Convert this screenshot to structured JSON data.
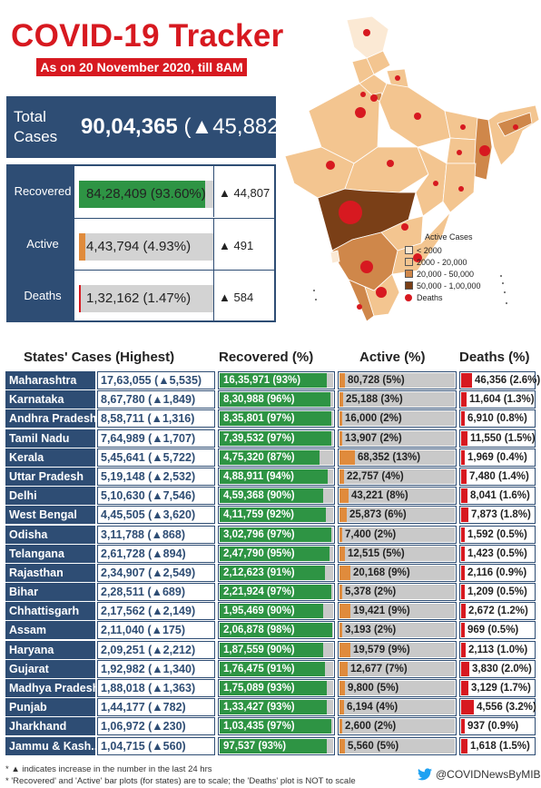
{
  "header": {
    "title": "COVID-19 Tracker",
    "subtitle": "As on 20 November 2020, till 8AM"
  },
  "total": {
    "label": "Total Cases",
    "value": "90,04,365",
    "delta": "(▲45,882)"
  },
  "summary": [
    {
      "label": "Recovered",
      "value": "84,28,409 (93.60%)",
      "pct": 93.6,
      "color": "#2e9444",
      "delta": "▲ 44,807"
    },
    {
      "label": "Active",
      "value": "4,43,794 (4.93%)",
      "pct": 4.93,
      "color": "#e08b3c",
      "delta": "▲ 491"
    },
    {
      "label": "Deaths",
      "value": "1,32,162 (1.47%)",
      "pct": 1.47,
      "color": "#d71920",
      "delta": "▲ 584"
    }
  ],
  "legend": {
    "title": "Active Cases",
    "items": [
      {
        "label": "< 2000",
        "color": "#fbe9d4"
      },
      {
        "label": "2000 - 20,000",
        "color": "#f3c590"
      },
      {
        "label": "20,000 - 50,000",
        "color": "#cf874a"
      },
      {
        "label": "50,000 - 1,00,000",
        "color": "#7a3f17"
      }
    ],
    "deaths_label": "Deaths"
  },
  "table": {
    "headers": {
      "states": "States' Cases (Highest)",
      "recovered": "Recovered (%)",
      "active": "Active (%)",
      "deaths": "Deaths (%)"
    },
    "rows": [
      {
        "state": "Maharashtra",
        "total": "17,63,055 (▲5,535)",
        "rec": "16,35,971 (93%)",
        "rec_pct": 93,
        "act": "80,728 (5%)",
        "act_pct": 5,
        "dth": "46,356 (2.6%)",
        "dth_pct": 2.6
      },
      {
        "state": "Karnataka",
        "total": "8,67,780 (▲1,849)",
        "rec": "8,30,988 (96%)",
        "rec_pct": 96,
        "act": "25,188 (3%)",
        "act_pct": 3,
        "dth": "11,604 (1.3%)",
        "dth_pct": 1.3
      },
      {
        "state": "Andhra Pradesh",
        "total": "8,58,711 (▲1,316)",
        "rec": "8,35,801 (97%)",
        "rec_pct": 97,
        "act": "16,000 (2%)",
        "act_pct": 2,
        "dth": "6,910 (0.8%)",
        "dth_pct": 0.8
      },
      {
        "state": "Tamil Nadu",
        "total": "7,64,989 (▲1,707)",
        "rec": "7,39,532 (97%)",
        "rec_pct": 97,
        "act": "13,907 (2%)",
        "act_pct": 2,
        "dth": "11,550 (1.5%)",
        "dth_pct": 1.5
      },
      {
        "state": "Kerala",
        "total": "5,45,641 (▲5,722)",
        "rec": "4,75,320 (87%)",
        "rec_pct": 87,
        "act": "68,352 (13%)",
        "act_pct": 13,
        "dth": "1,969 (0.4%)",
        "dth_pct": 0.4
      },
      {
        "state": "Uttar Pradesh",
        "total": "5,19,148 (▲2,532)",
        "rec": "4,88,911 (94%)",
        "rec_pct": 94,
        "act": "22,757 (4%)",
        "act_pct": 4,
        "dth": "7,480 (1.4%)",
        "dth_pct": 1.4
      },
      {
        "state": "Delhi",
        "total": "5,10,630 (▲7,546)",
        "rec": "4,59,368 (90%)",
        "rec_pct": 90,
        "act": "43,221 (8%)",
        "act_pct": 8,
        "dth": "8,041 (1.6%)",
        "dth_pct": 1.6
      },
      {
        "state": "West Bengal",
        "total": "4,45,505 (▲3,620)",
        "rec": "4,11,759 (92%)",
        "rec_pct": 92,
        "act": "25,873 (6%)",
        "act_pct": 6,
        "dth": "7,873 (1.8%)",
        "dth_pct": 1.8
      },
      {
        "state": "Odisha",
        "total": "3,11,788 (▲868)",
        "rec": "3,02,796 (97%)",
        "rec_pct": 97,
        "act": "7,400 (2%)",
        "act_pct": 2,
        "dth": "1,592 (0.5%)",
        "dth_pct": 0.5
      },
      {
        "state": "Telangana",
        "total": "2,61,728 (▲894)",
        "rec": "2,47,790 (95%)",
        "rec_pct": 95,
        "act": "12,515 (5%)",
        "act_pct": 5,
        "dth": "1,423 (0.5%)",
        "dth_pct": 0.5
      },
      {
        "state": "Rajasthan",
        "total": "2,34,907 (▲2,549)",
        "rec": "2,12,623 (91%)",
        "rec_pct": 91,
        "act": "20,168 (9%)",
        "act_pct": 9,
        "dth": "2,116 (0.9%)",
        "dth_pct": 0.9
      },
      {
        "state": "Bihar",
        "total": "2,28,511 (▲689)",
        "rec": "2,21,924 (97%)",
        "rec_pct": 97,
        "act": "5,378 (2%)",
        "act_pct": 2,
        "dth": "1,209 (0.5%)",
        "dth_pct": 0.5
      },
      {
        "state": "Chhattisgarh",
        "total": "2,17,562 (▲2,149)",
        "rec": "1,95,469 (90%)",
        "rec_pct": 90,
        "act": "19,421 (9%)",
        "act_pct": 9,
        "dth": "2,672 (1.2%)",
        "dth_pct": 1.2
      },
      {
        "state": "Assam",
        "total": "2,11,040 (▲175)",
        "rec": "2,06,878 (98%)",
        "rec_pct": 98,
        "act": "3,193 (2%)",
        "act_pct": 2,
        "dth": "969 (0.5%)",
        "dth_pct": 0.5
      },
      {
        "state": "Haryana",
        "total": "2,09,251 (▲2,212)",
        "rec": "1,87,559 (90%)",
        "rec_pct": 90,
        "act": "19,579 (9%)",
        "act_pct": 9,
        "dth": "2,113 (1.0%)",
        "dth_pct": 1.0
      },
      {
        "state": "Gujarat",
        "total": "1,92,982 (▲1,340)",
        "rec": "1,76,475 (91%)",
        "rec_pct": 91,
        "act": "12,677 (7%)",
        "act_pct": 7,
        "dth": "3,830 (2.0%)",
        "dth_pct": 2.0
      },
      {
        "state": "Madhya Pradesh",
        "total": "1,88,018 (▲1,363)",
        "rec": "1,75,089 (93%)",
        "rec_pct": 93,
        "act": "9,800 (5%)",
        "act_pct": 5,
        "dth": "3,129 (1.7%)",
        "dth_pct": 1.7
      },
      {
        "state": "Punjab",
        "total": "1,44,177 (▲782)",
        "rec": "1,33,427 (93%)",
        "rec_pct": 93,
        "act": "6,194 (4%)",
        "act_pct": 4,
        "dth": "4,556 (3.2%)",
        "dth_pct": 3.2
      },
      {
        "state": "Jharkhand",
        "total": "1,06,972 (▲230)",
        "rec": "1,03,435 (97%)",
        "rec_pct": 97,
        "act": "2,600 (2%)",
        "act_pct": 2,
        "dth": "937 (0.9%)",
        "dth_pct": 0.9
      },
      {
        "state": "Jammu & Kash..",
        "total": "1,04,715 (▲560)",
        "rec": "97,537 (93%)",
        "rec_pct": 93,
        "act": "5,560 (5%)",
        "act_pct": 5,
        "dth": "1,618 (1.5%)",
        "dth_pct": 1.5
      }
    ]
  },
  "footnotes": [
    "* ▲ indicates increase in the number in the last 24 hrs",
    "* 'Recovered' and 'Active' bar plots (for states) are to scale; the 'Deaths' plot is NOT to scale"
  ],
  "twitter_handle": "@COVIDNewsByMIB",
  "colors": {
    "navy": "#2e4d74",
    "red": "#d71920",
    "green": "#2e9444",
    "orange": "#e08b3c"
  }
}
